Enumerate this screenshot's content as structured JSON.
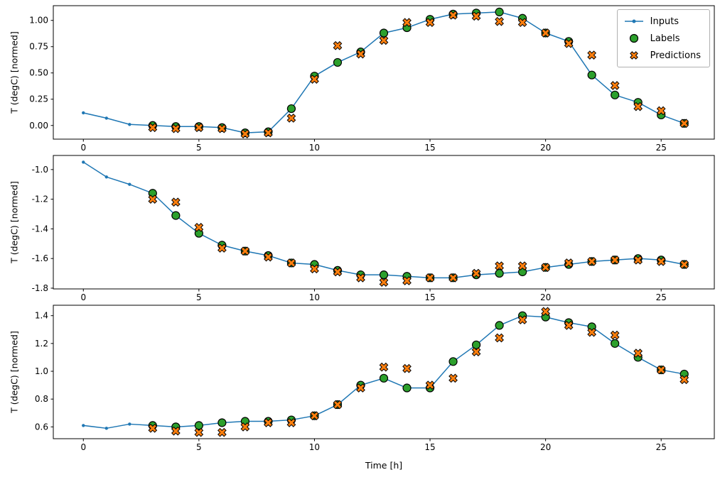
{
  "figure": {
    "xlabel": "Time [h]",
    "background": "#ffffff",
    "legend_position": "upper right (first subplot)",
    "legend": [
      {
        "label": "Inputs",
        "marker": "line-with-dot",
        "color": "#1f77b4"
      },
      {
        "label": "Labels",
        "marker": "circle",
        "color": "#2ca02c"
      },
      {
        "label": "Predictions",
        "marker": "x-cross",
        "color": "#ff7f0e"
      }
    ]
  },
  "chart_data": [
    {
      "type": "line+scatter",
      "title": "",
      "xlabel": "",
      "ylabel": "T (degC) [normed]",
      "xlim": [
        -1.3,
        27.3
      ],
      "ylim": [
        -0.13,
        1.14
      ],
      "xticks": [
        0,
        5,
        10,
        15,
        20,
        25
      ],
      "xtick_labels": [
        "0",
        "5",
        "10",
        "15",
        "20",
        "25"
      ],
      "yticks": [
        0.0,
        0.25,
        0.5,
        0.75,
        1.0
      ],
      "ytick_labels": [
        "0.00",
        "0.25",
        "0.50",
        "0.75",
        "1.00"
      ],
      "grid": false,
      "series": [
        {
          "name": "Inputs",
          "x": [
            0,
            1,
            2,
            3,
            4,
            5,
            6,
            7,
            8,
            9,
            10,
            11,
            12,
            13,
            14,
            15,
            16,
            17,
            18,
            19,
            20,
            21,
            22,
            23,
            24,
            25,
            26
          ],
          "values": [
            0.12,
            0.07,
            0.01,
            0.0,
            -0.01,
            -0.01,
            -0.02,
            -0.07,
            -0.06,
            0.16,
            0.47,
            0.6,
            0.7,
            0.88,
            0.93,
            1.01,
            1.06,
            1.07,
            1.08,
            1.02,
            0.88,
            0.8,
            0.48,
            0.29,
            0.22,
            0.1,
            0.02
          ]
        },
        {
          "name": "Labels",
          "x": [
            3,
            4,
            5,
            6,
            7,
            8,
            9,
            10,
            11,
            12,
            13,
            14,
            15,
            16,
            17,
            18,
            19,
            20,
            21,
            22,
            23,
            24,
            25,
            26
          ],
          "values": [
            0.0,
            -0.01,
            -0.01,
            -0.02,
            -0.07,
            -0.06,
            0.16,
            0.47,
            0.6,
            0.7,
            0.88,
            0.93,
            1.01,
            1.06,
            1.07,
            1.08,
            1.02,
            0.88,
            0.8,
            0.48,
            0.29,
            0.22,
            0.1,
            0.02
          ]
        },
        {
          "name": "Predictions",
          "x": [
            3,
            4,
            5,
            6,
            7,
            8,
            9,
            10,
            11,
            12,
            13,
            14,
            15,
            16,
            17,
            18,
            19,
            20,
            21,
            22,
            23,
            24,
            25,
            26
          ],
          "values": [
            -0.02,
            -0.03,
            -0.02,
            -0.03,
            -0.08,
            -0.07,
            0.07,
            0.44,
            0.76,
            0.68,
            0.81,
            0.98,
            0.98,
            1.05,
            1.04,
            0.99,
            0.98,
            0.88,
            0.78,
            0.67,
            0.38,
            0.18,
            0.14,
            0.02
          ]
        }
      ]
    },
    {
      "type": "line+scatter",
      "title": "",
      "xlabel": "",
      "ylabel": "T (degC) [normed]",
      "xlim": [
        -1.3,
        27.3
      ],
      "ylim": [
        -1.805,
        -0.905
      ],
      "xticks": [
        0,
        5,
        10,
        15,
        20,
        25
      ],
      "xtick_labels": [
        "0",
        "5",
        "10",
        "15",
        "20",
        "25"
      ],
      "yticks": [
        -1.8,
        -1.6,
        -1.4,
        -1.2,
        -1.0
      ],
      "ytick_labels": [
        "-1.8",
        "-1.6",
        "-1.4",
        "-1.2",
        "-1.0"
      ],
      "grid": false,
      "series": [
        {
          "name": "Inputs",
          "x": [
            0,
            1,
            2,
            3,
            4,
            5,
            6,
            7,
            8,
            9,
            10,
            11,
            12,
            13,
            14,
            15,
            16,
            17,
            18,
            19,
            20,
            21,
            22,
            23,
            24,
            25,
            26
          ],
          "values": [
            -0.95,
            -1.05,
            -1.1,
            -1.16,
            -1.31,
            -1.43,
            -1.51,
            -1.55,
            -1.58,
            -1.63,
            -1.64,
            -1.68,
            -1.71,
            -1.71,
            -1.72,
            -1.73,
            -1.73,
            -1.71,
            -1.7,
            -1.69,
            -1.66,
            -1.64,
            -1.62,
            -1.61,
            -1.6,
            -1.61,
            -1.64
          ]
        },
        {
          "name": "Labels",
          "x": [
            3,
            4,
            5,
            6,
            7,
            8,
            9,
            10,
            11,
            12,
            13,
            14,
            15,
            16,
            17,
            18,
            19,
            20,
            21,
            22,
            23,
            24,
            25,
            26
          ],
          "values": [
            -1.16,
            -1.31,
            -1.43,
            -1.51,
            -1.55,
            -1.58,
            -1.63,
            -1.64,
            -1.68,
            -1.71,
            -1.71,
            -1.72,
            -1.73,
            -1.73,
            -1.71,
            -1.7,
            -1.69,
            -1.66,
            -1.64,
            -1.62,
            -1.61,
            -1.6,
            -1.61,
            -1.64
          ]
        },
        {
          "name": "Predictions",
          "x": [
            3,
            4,
            5,
            6,
            7,
            8,
            9,
            10,
            11,
            12,
            13,
            14,
            15,
            16,
            17,
            18,
            19,
            20,
            21,
            22,
            23,
            24,
            25,
            26
          ],
          "values": [
            -1.2,
            -1.22,
            -1.39,
            -1.53,
            -1.55,
            -1.59,
            -1.63,
            -1.67,
            -1.69,
            -1.73,
            -1.76,
            -1.75,
            -1.73,
            -1.73,
            -1.7,
            -1.65,
            -1.65,
            -1.66,
            -1.63,
            -1.62,
            -1.61,
            -1.61,
            -1.62,
            -1.64
          ]
        }
      ]
    },
    {
      "type": "line+scatter",
      "title": "",
      "xlabel": "Time [h]",
      "ylabel": "T (degC) [normed]",
      "xlim": [
        -1.3,
        27.3
      ],
      "ylim": [
        0.515,
        1.475
      ],
      "xticks": [
        0,
        5,
        10,
        15,
        20,
        25
      ],
      "xtick_labels": [
        "0",
        "5",
        "10",
        "15",
        "20",
        "25"
      ],
      "yticks": [
        0.6,
        0.8,
        1.0,
        1.2,
        1.4
      ],
      "ytick_labels": [
        "0.6",
        "0.8",
        "1.0",
        "1.2",
        "1.4"
      ],
      "grid": false,
      "series": [
        {
          "name": "Inputs",
          "x": [
            0,
            1,
            2,
            3,
            4,
            5,
            6,
            7,
            8,
            9,
            10,
            11,
            12,
            13,
            14,
            15,
            16,
            17,
            18,
            19,
            20,
            21,
            22,
            23,
            24,
            25,
            26
          ],
          "values": [
            0.61,
            0.59,
            0.62,
            0.61,
            0.6,
            0.61,
            0.63,
            0.64,
            0.64,
            0.65,
            0.68,
            0.76,
            0.9,
            0.95,
            0.88,
            0.88,
            1.07,
            1.19,
            1.33,
            1.4,
            1.39,
            1.35,
            1.32,
            1.2,
            1.1,
            1.01,
            0.98
          ]
        },
        {
          "name": "Labels",
          "x": [
            3,
            4,
            5,
            6,
            7,
            8,
            9,
            10,
            11,
            12,
            13,
            14,
            15,
            16,
            17,
            18,
            19,
            20,
            21,
            22,
            23,
            24,
            25,
            26
          ],
          "values": [
            0.61,
            0.6,
            0.61,
            0.63,
            0.64,
            0.64,
            0.65,
            0.68,
            0.76,
            0.9,
            0.95,
            0.88,
            0.88,
            1.07,
            1.19,
            1.33,
            1.4,
            1.39,
            1.35,
            1.32,
            1.2,
            1.1,
            1.01,
            0.98
          ]
        },
        {
          "name": "Predictions",
          "x": [
            3,
            4,
            5,
            6,
            7,
            8,
            9,
            10,
            11,
            12,
            13,
            14,
            15,
            16,
            17,
            18,
            19,
            20,
            21,
            22,
            23,
            24,
            25,
            26
          ],
          "values": [
            0.59,
            0.57,
            0.56,
            0.56,
            0.6,
            0.63,
            0.63,
            0.68,
            0.76,
            0.88,
            1.03,
            1.02,
            0.9,
            0.95,
            1.14,
            1.24,
            1.37,
            1.43,
            1.33,
            1.28,
            1.26,
            1.13,
            1.01,
            0.94
          ]
        }
      ]
    }
  ]
}
